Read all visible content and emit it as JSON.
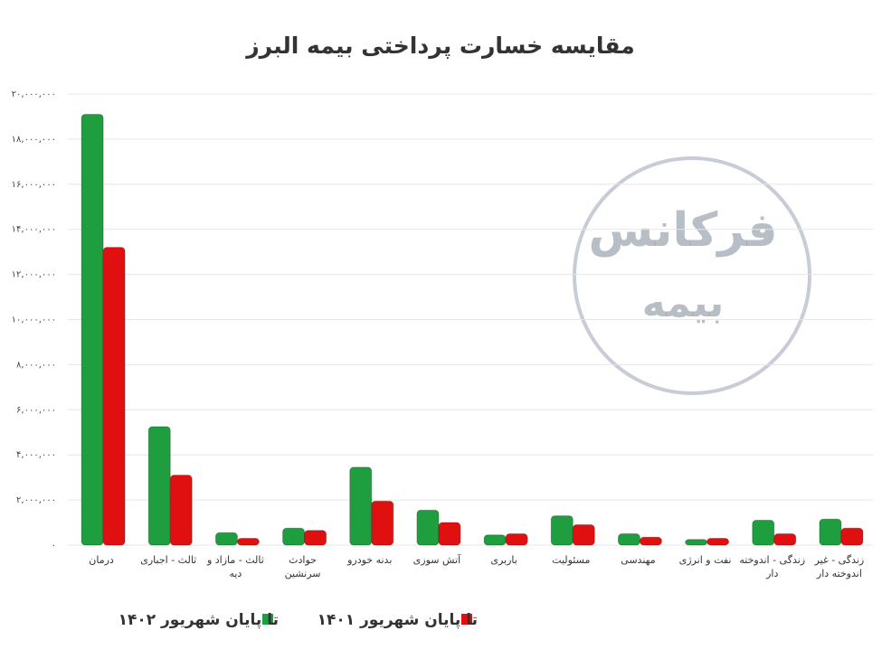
{
  "chart_data": {
    "type": "bar",
    "title": "مقایسه خسارت پرداختی بیمه البرز",
    "watermark": [
      "فرکانس",
      "بیمه"
    ],
    "categories": [
      "درمان",
      "ثالث - اجباری",
      "ثالث - مازاد و دیه",
      "حوادث سرنشین",
      "بدنه خودرو",
      "آتش سوزی",
      "باربری",
      "مسئولیت",
      "مهندسی",
      "نفت و انرژی",
      "زندگی - اندوخته دار",
      "زندگی - غیر اندوخته دار"
    ],
    "series": [
      {
        "name": "تا پایان شهریور ۱۴۰۲",
        "color": "#1e9e3e",
        "values": [
          19100000,
          5250000,
          550000,
          750000,
          3450000,
          1550000,
          450000,
          1300000,
          500000,
          250000,
          1100000,
          1150000
        ]
      },
      {
        "name": "تا پایان شهریور ۱۴۰۱",
        "color": "#e01010",
        "values": [
          13200000,
          3100000,
          300000,
          650000,
          1950000,
          1000000,
          500000,
          900000,
          350000,
          300000,
          500000,
          750000
        ]
      }
    ],
    "ylim": [
      0,
      20000000
    ],
    "yticks": [
      {
        "value": 0,
        "label": "۰"
      },
      {
        "value": 2000000,
        "label": "۲,۰۰۰,۰۰۰"
      },
      {
        "value": 4000000,
        "label": "۴,۰۰۰,۰۰۰"
      },
      {
        "value": 6000000,
        "label": "۶,۰۰۰,۰۰۰"
      },
      {
        "value": 8000000,
        "label": "۸,۰۰۰,۰۰۰"
      },
      {
        "value": 10000000,
        "label": "۱۰,۰۰۰,۰۰۰"
      },
      {
        "value": 12000000,
        "label": "۱۲,۰۰۰,۰۰۰"
      },
      {
        "value": 14000000,
        "label": "۱۴,۰۰۰,۰۰۰"
      },
      {
        "value": 16000000,
        "label": "۱۶,۰۰۰,۰۰۰"
      },
      {
        "value": 18000000,
        "label": "۱۸,۰۰۰,۰۰۰"
      },
      {
        "value": 20000000,
        "label": "۲۰,۰۰۰,۰۰۰"
      }
    ],
    "grid": true
  }
}
